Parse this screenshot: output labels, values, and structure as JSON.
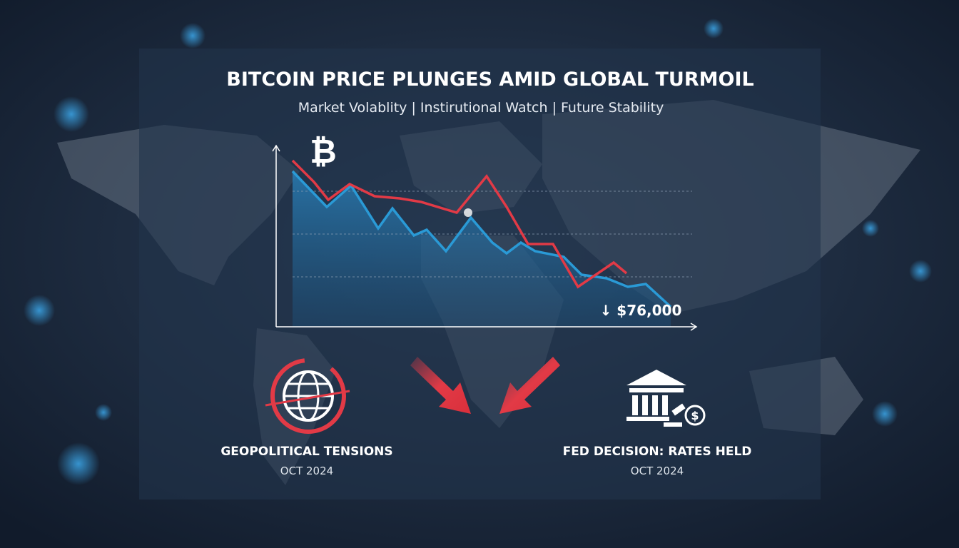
{
  "header": {
    "title": "BITCOIN PRICE PLUNGES AMID GLOBAL TURMOIL",
    "subtitle": "Market Volablity | Instirutional Watch | Future Stability"
  },
  "chart": {
    "symbol": "₿",
    "price_label": "↓ $76,000"
  },
  "captions": [
    {
      "title": "GEOPOLITICAL TENSIONS",
      "date": "OCT 2024"
    },
    {
      "title": "FED DECISION: RATES HELD",
      "date": "OCT 2024"
    }
  ]
}
